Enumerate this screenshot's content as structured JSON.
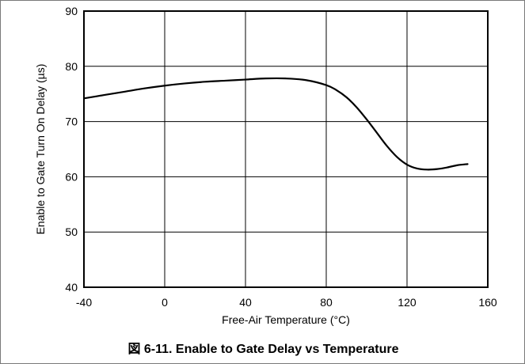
{
  "caption": "図 6-11. Enable to Gate Delay vs Temperature",
  "colors": {
    "line": "#000000",
    "grid": "#000000",
    "frame": "#7a7a7a"
  },
  "chart_data": {
    "type": "line",
    "title": "図 6-11. Enable to Gate Delay vs Temperature",
    "xlabel": "Free-Air Temperature (°C)",
    "ylabel": "Enable to Gate Turn On Delay (µs)",
    "xlim": [
      -40,
      160
    ],
    "ylim": [
      40,
      90
    ],
    "xticks": [
      -40,
      0,
      40,
      80,
      120,
      160
    ],
    "yticks": [
      40,
      50,
      60,
      70,
      80,
      90
    ],
    "grid": true,
    "legend": "none",
    "series": [
      {
        "x": [
          -40,
          -30,
          -20,
          -10,
          0,
          10,
          20,
          30,
          40,
          50,
          60,
          70,
          80,
          85,
          90,
          95,
          100,
          105,
          110,
          115,
          120,
          125,
          130,
          135,
          140,
          145,
          150
        ],
        "y": [
          74.2,
          74.8,
          75.4,
          76.0,
          76.5,
          76.9,
          77.2,
          77.4,
          77.6,
          77.8,
          77.8,
          77.5,
          76.6,
          75.7,
          74.4,
          72.6,
          70.4,
          68.0,
          65.6,
          63.6,
          62.2,
          61.5,
          61.3,
          61.4,
          61.7,
          62.1,
          62.3
        ]
      }
    ]
  }
}
